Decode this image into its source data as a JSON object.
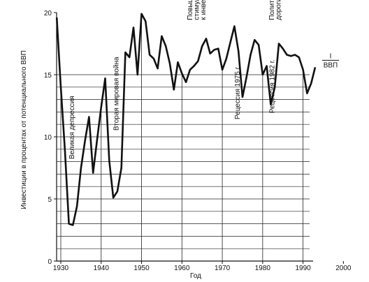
{
  "chart_data": {
    "type": "line",
    "xlabel": "Год",
    "ylabel": "Инвестиции в процентах от потенциального ВВП",
    "xlim": [
      1930,
      2000
    ],
    "ylim": [
      0,
      20
    ],
    "x_ticks": [
      1930,
      1940,
      1950,
      1960,
      1970,
      1980,
      1990,
      2000
    ],
    "y_ticks": [
      0,
      5,
      10,
      15,
      20
    ],
    "series": [
      {
        "name": "I/ВВП",
        "x": [
          1929,
          1930,
          1931,
          1932,
          1933,
          1934,
          1935,
          1936,
          1937,
          1938,
          1939,
          1940,
          1941,
          1942,
          1943,
          1944,
          1945,
          1946,
          1947,
          1948,
          1949,
          1950,
          1951,
          1952,
          1953,
          1954,
          1955,
          1956,
          1957,
          1958,
          1959,
          1960,
          1961,
          1962,
          1963,
          1964,
          1965,
          1966,
          1967,
          1968,
          1969,
          1970,
          1971,
          1972,
          1973,
          1974,
          1975,
          1976,
          1977,
          1978,
          1979,
          1980,
          1981,
          1982,
          1983,
          1984,
          1985,
          1986,
          1987,
          1988,
          1989,
          1990,
          1991,
          1992,
          1993
        ],
        "y": [
          19.6,
          14.0,
          9.0,
          3.0,
          2.9,
          4.4,
          7.5,
          9.7,
          11.6,
          7.1,
          9.8,
          12.4,
          14.7,
          8.1,
          5.1,
          5.6,
          7.5,
          16.8,
          16.4,
          18.8,
          15.0,
          19.9,
          19.3,
          16.6,
          16.3,
          15.5,
          18.1,
          17.3,
          15.9,
          13.8,
          16.0,
          15.1,
          14.4,
          15.4,
          15.7,
          16.1,
          17.3,
          17.9,
          16.7,
          17.0,
          17.1,
          15.4,
          16.3,
          17.6,
          18.9,
          16.9,
          13.2,
          14.8,
          16.6,
          17.8,
          17.4,
          15.0,
          15.7,
          12.6,
          14.0,
          17.5,
          17.1,
          16.6,
          16.5,
          16.6,
          16.4,
          15.4,
          13.5,
          14.3,
          15.6
        ]
      }
    ],
    "annotations": [
      {
        "text": "Великая депрессия",
        "x": 1933.3,
        "y": 8.2
      },
      {
        "text": "Вторая мировая война",
        "x": 1944.3,
        "y": 10.5
      },
      {
        "lines": [
          "Повышение",
          "стимулов",
          "к инвестициям"
        ],
        "x": 1962.5,
        "y": 19.4
      },
      {
        "text": "Рецессия 1975 г.",
        "x": 1974.3,
        "y": 11.4
      },
      {
        "lines": [
          "Политика",
          "дорогих денег"
        ],
        "x": 1982.8,
        "y": 19.4
      },
      {
        "text": "Рецессия 1982 г.",
        "x": 1982.9,
        "y": 11.9
      }
    ],
    "series_label": {
      "numerator": "I",
      "denominator": "ВВП",
      "x": 1993.7,
      "y": 15.6
    }
  }
}
